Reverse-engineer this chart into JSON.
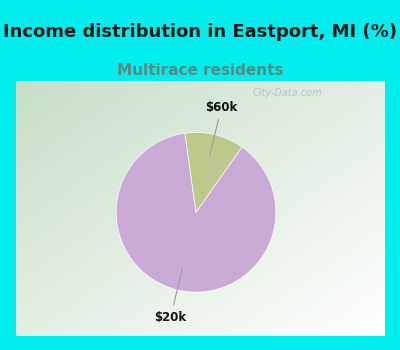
{
  "title": "Income distribution in Eastport, MI (%)",
  "subtitle": "Multirace residents",
  "title_fontsize": 13,
  "subtitle_fontsize": 11,
  "title_color": "#1a1a1a",
  "subtitle_color": "#5a8a7a",
  "top_bg_color": "#00EEEE",
  "chart_bg_left": "#c8ddc8",
  "chart_bg_right": "#f0f5f5",
  "border_color": "#00EEEE",
  "border_width": 6,
  "slices": [
    {
      "label": "$20k",
      "value": 88,
      "color": "#c9aad5"
    },
    {
      "label": "$60k",
      "value": 12,
      "color": "#bdc98a"
    }
  ],
  "label_fontsize": 8.5,
  "watermark": "City-Data.com",
  "startangle": 98
}
